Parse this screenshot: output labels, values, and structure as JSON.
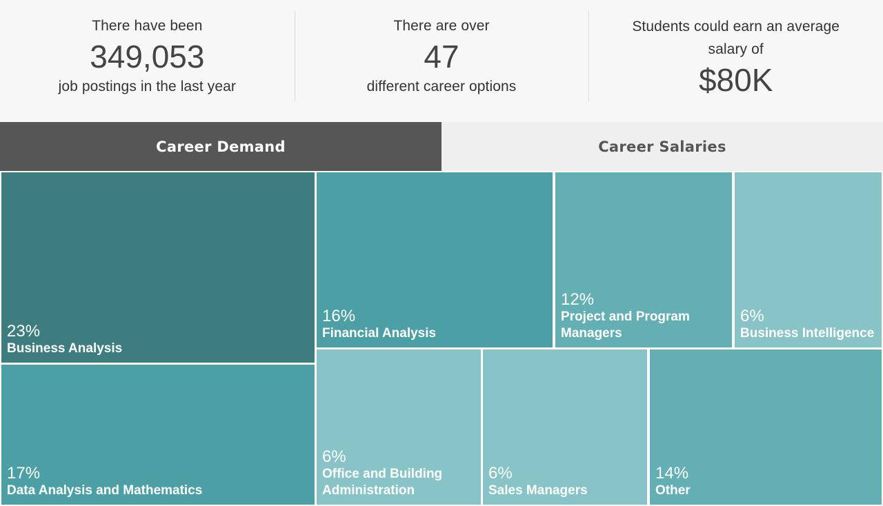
{
  "stats": [
    {
      "line1": "There have been",
      "value": "349,053",
      "line2": "job postings in the last year"
    },
    {
      "line1": "There are over",
      "value": "47",
      "line2": "different career options"
    },
    {
      "line1": "Students could earn an average salary of",
      "value": "$80K",
      "line2": ""
    }
  ],
  "tabs": [
    {
      "label": "Career Demand",
      "active": true
    },
    {
      "label": "Career Salaries",
      "active": false
    }
  ],
  "colors": {
    "tab_active": "#565656",
    "tab_inactive": "#efefef",
    "tile_darkest": "#3e7d7f",
    "tile_dark": "#4c9fa4",
    "tile_mid": "#63afb4",
    "tile_light": "#88c4c7"
  },
  "chart_data": {
    "type": "treemap",
    "title": "Career Demand",
    "items": [
      {
        "label": "Business Analysis",
        "pct": "23%",
        "value": 23,
        "color": "#3e7d7f"
      },
      {
        "label": "Data Analysis and Mathematics",
        "pct": "17%",
        "value": 17,
        "color": "#4c9fa4"
      },
      {
        "label": "Financial Analysis",
        "pct": "16%",
        "value": 16,
        "color": "#4c9fa4"
      },
      {
        "label": "Project and Program Managers",
        "pct": "12%",
        "value": 12,
        "color": "#63afb4"
      },
      {
        "label": "Business Intelligence",
        "pct": "6%",
        "value": 6,
        "color": "#88c4c7"
      },
      {
        "label": "Office and Building Administration",
        "pct": "6%",
        "value": 6,
        "color": "#88c4c7"
      },
      {
        "label": "Sales Managers",
        "pct": "6%",
        "value": 6,
        "color": "#88c4c7"
      },
      {
        "label": "Other",
        "pct": "14%",
        "value": 14,
        "color": "#63afb4"
      }
    ]
  }
}
